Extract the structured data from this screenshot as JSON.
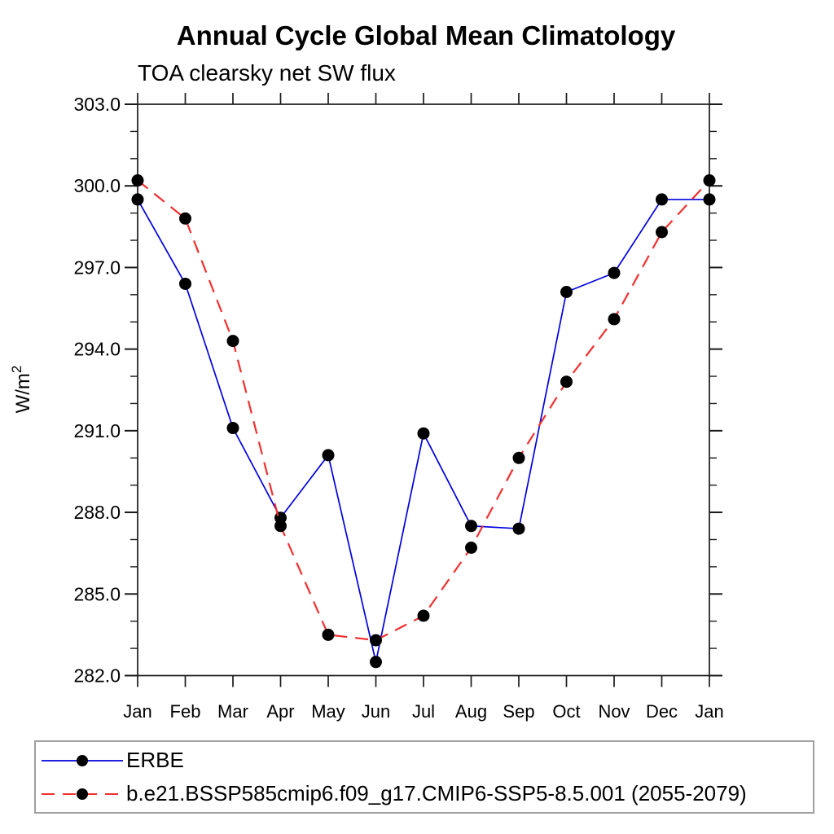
{
  "chart_data": {
    "type": "line",
    "title": "Annual Cycle Global Mean Climatology",
    "subtitle": "TOA clearsky net SW flux",
    "ylabel": "W/m²",
    "xlabel": "",
    "x_categories": [
      "Jan",
      "Feb",
      "Mar",
      "Apr",
      "May",
      "Jun",
      "Jul",
      "Aug",
      "Sep",
      "Oct",
      "Nov",
      "Dec",
      "Jan"
    ],
    "ylim": [
      282.0,
      303.0
    ],
    "ytick_major_step": 3.0,
    "ytick_minor_step": 1.0,
    "ytick_labels": [
      "282.0",
      "285.0",
      "288.0",
      "291.0",
      "294.0",
      "297.0",
      "300.0",
      "303.0"
    ],
    "grid": false,
    "legend_position": "bottom-left-box",
    "marker": {
      "shape": "filled-circle",
      "color": "#000000",
      "radius": 7.5
    },
    "series": [
      {
        "label": "ERBE",
        "color": "#0000e0",
        "style": "solid",
        "dash": "",
        "values": [
          299.5,
          296.4,
          291.1,
          287.8,
          290.1,
          282.5,
          290.9,
          287.5,
          287.4,
          296.1,
          296.8,
          299.5,
          299.5
        ]
      },
      {
        "label": "b.e21.BSSP585cmip6.f09_g17.CMIP6-SSP5-8.5.001 (2055-2079)",
        "color": "#f23030",
        "style": "dashed",
        "dash": "16 10",
        "values": [
          300.2,
          298.8,
          294.3,
          287.5,
          283.5,
          283.3,
          284.2,
          286.7,
          290.0,
          292.8,
          295.1,
          298.3,
          300.2
        ]
      }
    ]
  }
}
